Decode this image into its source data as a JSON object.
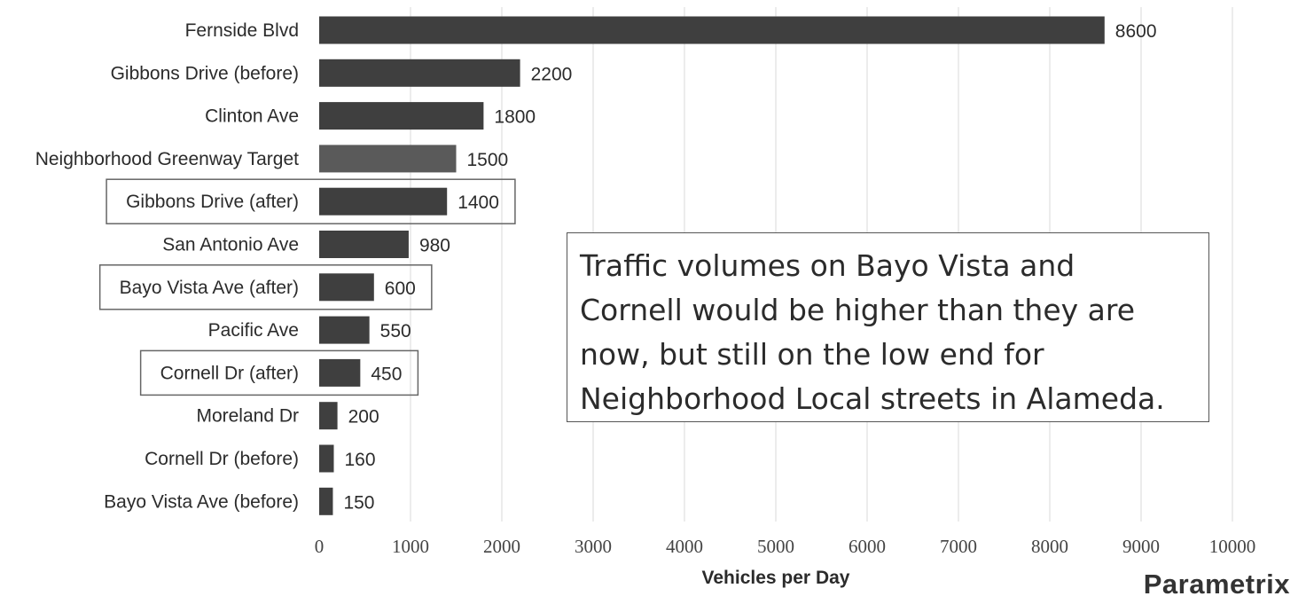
{
  "chart_data": {
    "type": "bar",
    "orientation": "horizontal",
    "categories": [
      "Fernside Blvd",
      "Gibbons Drive (before)",
      "Clinton Ave",
      "Neighborhood Greenway Target",
      "Gibbons Drive (after)",
      "San Antonio Ave",
      "Bayo Vista Ave (after)",
      "Pacific Ave",
      "Cornell Dr (after)",
      "Moreland Dr",
      "Cornell Dr (before)",
      "Bayo Vista Ave (before)"
    ],
    "values": [
      8600,
      2200,
      1800,
      1500,
      1400,
      980,
      600,
      550,
      450,
      200,
      160,
      150
    ],
    "highlighted": [
      "Gibbons Drive (after)",
      "Bayo Vista Ave (after)",
      "Cornell Dr (after)"
    ],
    "xlabel": "Vehicles per Day",
    "ylabel": "",
    "xlim": [
      0,
      10000
    ],
    "xticks": [
      0,
      1000,
      2000,
      3000,
      4000,
      5000,
      6000,
      7000,
      8000,
      9000,
      10000
    ],
    "grid": "vertical",
    "bar_color": "#3f3f3f",
    "target_bar_color": "#5a5a5a"
  },
  "annotation": {
    "lines": [
      "Traffic volumes on Bayo Vista and",
      "Cornell would be higher than they are",
      "now, but still on the low end for",
      "Neighborhood Local streets in Alameda."
    ]
  },
  "logo": {
    "text": "Parametrix"
  }
}
